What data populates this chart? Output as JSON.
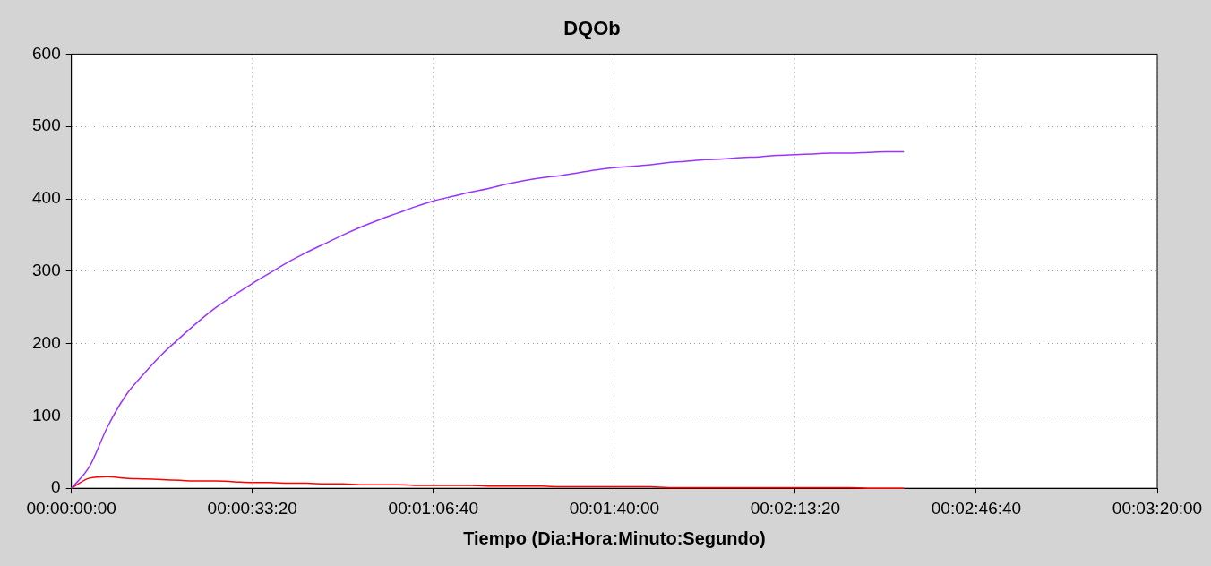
{
  "chart_data": {
    "type": "line",
    "title": "DQOb",
    "xlabel": "Tiempo (Dia:Hora:Minuto:Segundo)",
    "categories": [
      "00:00:00:00",
      null,
      null,
      null,
      null,
      null,
      null,
      null,
      null,
      null,
      "00:00:33:20",
      null,
      null,
      null,
      null,
      null,
      null,
      null,
      null,
      null,
      "00:01:06:40",
      null,
      null,
      null,
      null,
      null,
      null,
      null,
      null,
      null,
      "00:01:40:00",
      null,
      null,
      null,
      null,
      null,
      null,
      null,
      null,
      null,
      "00:02:13:20",
      null,
      null,
      null,
      null,
      null,
      null,
      null,
      null,
      null,
      "00:02:46:40",
      null,
      null,
      null,
      null,
      null,
      null,
      null,
      null,
      null,
      "00:03:20:00"
    ],
    "ylim": [
      0,
      600
    ],
    "yticks": [
      0,
      100,
      200,
      300,
      400,
      500,
      600
    ],
    "grid": true,
    "legend": false,
    "marker": "none",
    "line_style": "solid",
    "series": [
      {
        "color": "#9933ff",
        "values": [
          0,
          30,
          85,
          128,
          158,
          185,
          208,
          230,
          250,
          267,
          283,
          298,
          313,
          326,
          338,
          350,
          361,
          371,
          380,
          389,
          397,
          403,
          409,
          414,
          420,
          425,
          429,
          432,
          436,
          440,
          443,
          445,
          447,
          450,
          452,
          454,
          455,
          457,
          458,
          460,
          461,
          462,
          463,
          463,
          464,
          465,
          465,
          null,
          null,
          null,
          null,
          null,
          null,
          null,
          null,
          null,
          null,
          null,
          null,
          null,
          null
        ]
      },
      {
        "color": "#ff0000",
        "values": [
          0,
          14,
          16,
          14,
          13,
          12,
          11,
          10,
          10,
          9,
          8,
          8,
          7,
          7,
          6,
          6,
          5,
          5,
          5,
          4,
          4,
          4,
          4,
          3,
          3,
          3,
          3,
          2,
          2,
          2,
          2,
          2,
          2,
          1,
          1,
          1,
          1,
          1,
          1,
          1,
          1,
          1,
          1,
          1,
          0,
          0,
          0,
          null,
          null,
          null,
          null,
          null,
          null,
          null,
          null,
          null,
          null,
          null,
          null,
          null,
          null
        ]
      }
    ]
  }
}
